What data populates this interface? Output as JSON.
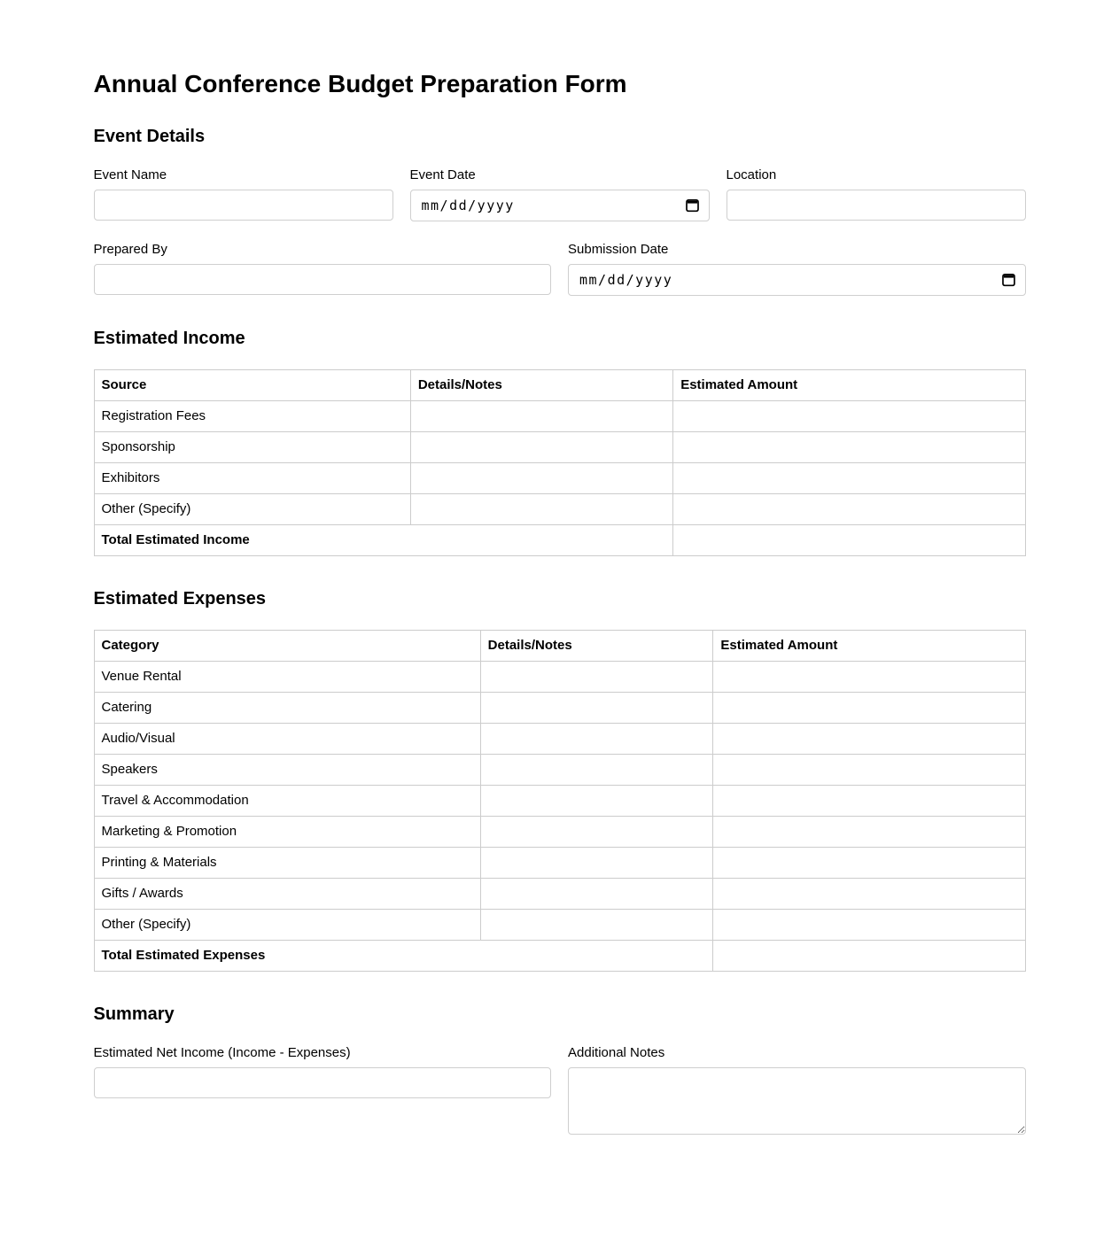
{
  "page": {
    "title": "Annual Conference Budget Preparation Form"
  },
  "event_details": {
    "heading": "Event Details",
    "fields": {
      "event_name": {
        "label": "Event Name",
        "value": "",
        "placeholder": ""
      },
      "event_date": {
        "label": "Event Date",
        "placeholder": "mm/dd/yyyy"
      },
      "location": {
        "label": "Location",
        "value": "",
        "placeholder": ""
      },
      "prepared_by": {
        "label": "Prepared By",
        "value": "",
        "placeholder": ""
      },
      "submission_date": {
        "label": "Submission Date",
        "placeholder": "mm/dd/yyyy"
      }
    }
  },
  "income": {
    "heading": "Estimated Income",
    "columns": [
      "Source",
      "Details/Notes",
      "Estimated Amount"
    ],
    "rows": [
      "Registration Fees",
      "Sponsorship",
      "Exhibitors",
      "Other (Specify)"
    ],
    "total_label": "Total Estimated Income",
    "cell_values": ""
  },
  "expenses": {
    "heading": "Estimated Expenses",
    "columns": [
      "Category",
      "Details/Notes",
      "Estimated Amount"
    ],
    "rows": [
      "Venue Rental",
      "Catering",
      "Audio/Visual",
      "Speakers",
      "Travel & Accommodation",
      "Marketing & Promotion",
      "Printing & Materials",
      "Gifts / Awards",
      "Other (Specify)"
    ],
    "total_label": "Total Estimated Expenses",
    "cell_values": ""
  },
  "summary": {
    "heading": "Summary",
    "net_income": {
      "label": "Estimated Net Income (Income - Expenses)",
      "value": "",
      "placeholder": ""
    },
    "additional_notes": {
      "label": "Additional Notes",
      "value": "",
      "placeholder": ""
    }
  },
  "colors": {
    "table_border": "#cccccc",
    "input_border": "#cfcfcf",
    "text": "#000000",
    "background": "#ffffff"
  }
}
